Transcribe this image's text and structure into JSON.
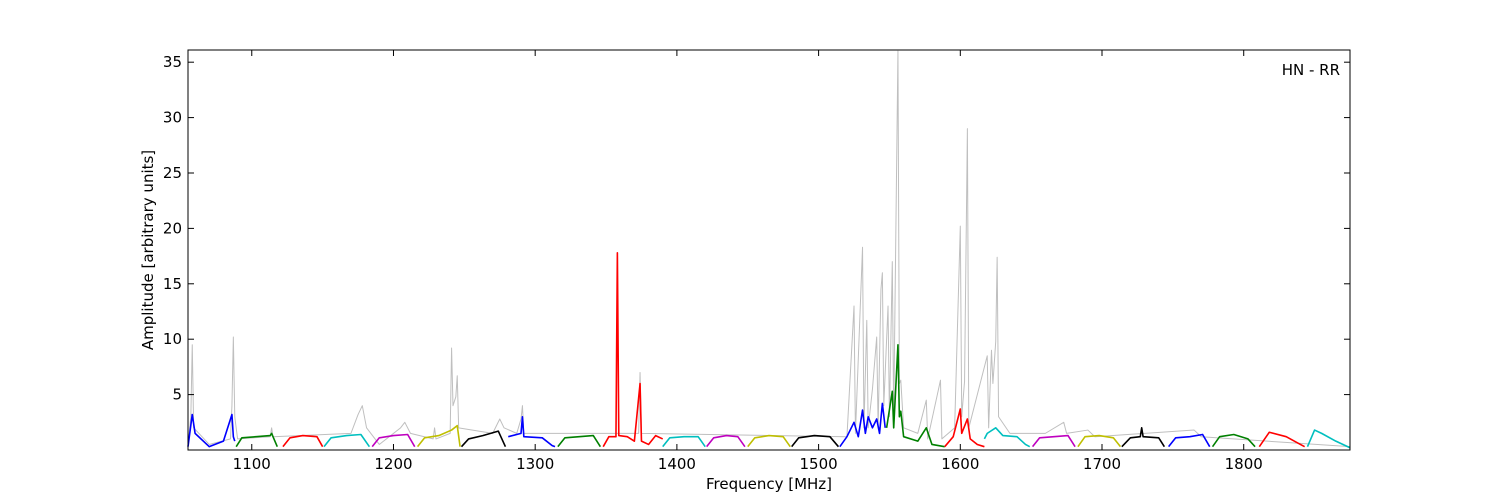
{
  "chart_data": {
    "type": "line",
    "xlabel": "Frequency [MHz]",
    "ylabel": "Amplitude [arbitrary units]",
    "annotation": "HN - RR",
    "xlim": [
      1055,
      1875
    ],
    "ylim": [
      0,
      36.1
    ],
    "xticks": [
      1100,
      1200,
      1300,
      1400,
      1500,
      1600,
      1700,
      1800
    ],
    "yticks": [
      5,
      10,
      15,
      20,
      25,
      30,
      35
    ],
    "series": [
      {
        "color": "#bfbfbf",
        "width": 1,
        "x": [
          1055,
          1057,
          1058,
          1059,
          1070,
          1085,
          1086,
          1087,
          1088,
          1090,
          1113,
          1114,
          1115,
          1170,
          1175,
          1178,
          1181,
          1190,
          1205,
          1208,
          1212,
          1228,
          1229,
          1230,
          1240,
          1241,
          1242,
          1244,
          1245,
          1246,
          1270,
          1275,
          1278,
          1287,
          1290,
          1291,
          1292,
          1373,
          1374,
          1375,
          1520,
          1525,
          1526,
          1531,
          1532,
          1534,
          1535,
          1538,
          1541,
          1542,
          1544,
          1545,
          1546,
          1549,
          1550,
          1552,
          1553,
          1556,
          1557,
          1558,
          1560,
          1570,
          1576,
          1577,
          1586,
          1587,
          1596,
          1600,
          1601,
          1603,
          1605,
          1606,
          1619,
          1620,
          1622,
          1623,
          1625,
          1626,
          1627,
          1635,
          1660,
          1673,
          1675,
          1690,
          1695,
          1765,
          1770,
          1875
        ],
        "values": [
          0.5,
          3,
          9.5,
          2,
          0.5,
          1,
          4,
          10.2,
          3,
          1,
          1.2,
          2,
          1.2,
          1.5,
          3.2,
          4,
          2,
          0.5,
          2,
          2.5,
          1.5,
          1,
          2,
          1,
          1.5,
          9.2,
          4,
          4.8,
          6.7,
          2,
          1.5,
          2.8,
          2,
          1.5,
          2.8,
          4,
          1.5,
          1.5,
          7,
          1.5,
          1.2,
          13,
          1.5,
          18.3,
          2,
          11.7,
          2,
          5.5,
          10.2,
          2,
          14.5,
          16,
          4,
          13,
          3,
          17,
          3,
          36,
          6,
          6.3,
          2,
          1.5,
          4.5,
          1,
          6.3,
          1,
          2,
          20.2,
          3,
          6.2,
          29,
          2,
          8.5,
          2,
          9,
          6,
          9.8,
          17.4,
          3,
          1.5,
          1.5,
          2.5,
          1.5,
          1.8,
          1.2,
          1.8,
          1.2,
          0.3
        ]
      },
      {
        "color": "#0000ff",
        "x": [
          1055,
          1058,
          1060,
          1070,
          1080,
          1086,
          1087,
          1088
        ],
        "values": [
          0.3,
          3.2,
          1.5,
          0.3,
          0.8,
          3.2,
          1.2,
          0.8
        ]
      },
      {
        "color": "#008000",
        "x": [
          1089,
          1093,
          1103,
          1113,
          1114,
          1118
        ],
        "values": [
          0.3,
          1.1,
          1.2,
          1.3,
          1.5,
          0.3
        ]
      },
      {
        "color": "#ff0000",
        "x": [
          1122,
          1127,
          1136,
          1146,
          1150
        ],
        "values": [
          0.3,
          1.1,
          1.3,
          1.2,
          0.3
        ]
      },
      {
        "color": "#00bfbf",
        "x": [
          1151,
          1156,
          1167,
          1177,
          1183
        ],
        "values": [
          0.3,
          1.1,
          1.3,
          1.4,
          0.3
        ]
      },
      {
        "color": "#bf00bf",
        "x": [
          1185,
          1190,
          1200,
          1210,
          1215
        ],
        "values": [
          0.3,
          1.1,
          1.3,
          1.4,
          0.3
        ]
      },
      {
        "color": "#bfbf00",
        "x": [
          1217,
          1222,
          1232,
          1241,
          1245,
          1247
        ],
        "values": [
          0.3,
          1.1,
          1.3,
          1.8,
          2.2,
          0.3
        ]
      },
      {
        "color": "#000000",
        "x": [
          1248,
          1253,
          1263,
          1274,
          1279
        ],
        "values": [
          0.3,
          1.0,
          1.3,
          1.7,
          0.3
        ]
      },
      {
        "color": "#0000ff",
        "x": [
          1281,
          1290,
          1291,
          1292,
          1305,
          1312,
          1314
        ],
        "values": [
          1.2,
          1.5,
          3,
          1.2,
          1.1,
          0.4,
          0.3
        ]
      },
      {
        "color": "#008000",
        "x": [
          1316,
          1321,
          1331,
          1341,
          1346
        ],
        "values": [
          0.3,
          1.1,
          1.2,
          1.3,
          0.3
        ]
      },
      {
        "color": "#ff0000",
        "x": [
          1348,
          1352,
          1357,
          1358,
          1359,
          1365,
          1370,
          1374,
          1375,
          1380,
          1385,
          1390
        ],
        "values": [
          0.3,
          1.2,
          1.2,
          17.8,
          1.3,
          1.2,
          0.8,
          6,
          0.8,
          0.5,
          1.3,
          1
        ]
      },
      {
        "color": "#00bfbf",
        "x": [
          1390,
          1395,
          1405,
          1415,
          1420
        ],
        "values": [
          0.3,
          1.1,
          1.2,
          1.2,
          0.3
        ]
      },
      {
        "color": "#bf00bf",
        "x": [
          1421,
          1426,
          1435,
          1443,
          1448
        ],
        "values": [
          0.3,
          1.1,
          1.3,
          1.2,
          0.3
        ]
      },
      {
        "color": "#bfbf00",
        "x": [
          1450,
          1455,
          1465,
          1475,
          1480
        ],
        "values": [
          0.3,
          1.1,
          1.3,
          1.2,
          0.3
        ]
      },
      {
        "color": "#000000",
        "x": [
          1481,
          1486,
          1497,
          1508,
          1514
        ],
        "values": [
          0.3,
          1.1,
          1.3,
          1.2,
          0.3
        ]
      },
      {
        "color": "#0000ff",
        "x": [
          1515,
          1520,
          1525,
          1528,
          1531,
          1533,
          1535,
          1538,
          1541,
          1543,
          1545,
          1547
        ],
        "values": [
          0.3,
          1.2,
          2.5,
          1.2,
          3.6,
          1.5,
          3,
          2,
          2.8,
          1.5,
          4.2,
          2
        ]
      },
      {
        "color": "#008000",
        "x": [
          1548,
          1552,
          1553,
          1556,
          1557,
          1558,
          1560,
          1570,
          1576,
          1580,
          1589
        ],
        "values": [
          2,
          5.3,
          2,
          9.5,
          3,
          3.5,
          1.2,
          0.8,
          2,
          0.5,
          0.3
        ]
      },
      {
        "color": "#ff0000",
        "x": [
          1589,
          1595,
          1600,
          1601,
          1605,
          1607,
          1612,
          1617
        ],
        "values": [
          0.3,
          1.2,
          3.7,
          1.5,
          2.8,
          1,
          0.5,
          0.3
        ]
      },
      {
        "color": "#00bfbf",
        "x": [
          1617,
          1619,
          1625,
          1630,
          1640,
          1646,
          1649
        ],
        "values": [
          1,
          1.5,
          2,
          1.3,
          1.2,
          0.5,
          0.3
        ]
      },
      {
        "color": "#bf00bf",
        "x": [
          1651,
          1656,
          1666,
          1676,
          1681
        ],
        "values": [
          0.3,
          1.1,
          1.2,
          1.3,
          0.3
        ]
      },
      {
        "color": "#bfbf00",
        "x": [
          1683,
          1688,
          1698,
          1708,
          1713
        ],
        "values": [
          0.3,
          1.2,
          1.3,
          1.1,
          0.3
        ]
      },
      {
        "color": "#000000",
        "x": [
          1714,
          1720,
          1727,
          1728,
          1729,
          1740,
          1744
        ],
        "values": [
          0.3,
          1.1,
          1.2,
          2,
          1.2,
          1.1,
          0.3
        ]
      },
      {
        "color": "#0000ff",
        "x": [
          1747,
          1752,
          1762,
          1771,
          1776
        ],
        "values": [
          0.3,
          1.1,
          1.2,
          1.4,
          0.3
        ]
      },
      {
        "color": "#008000",
        "x": [
          1778,
          1783,
          1793,
          1803,
          1808
        ],
        "values": [
          0.3,
          1.2,
          1.4,
          1.0,
          0.3
        ]
      },
      {
        "color": "#ff0000",
        "x": [
          1811,
          1818,
          1830,
          1840,
          1843
        ],
        "values": [
          0.3,
          1.6,
          1.2,
          0.5,
          0.3
        ]
      },
      {
        "color": "#00bfbf",
        "x": [
          1845,
          1850,
          1855,
          1865,
          1875
        ],
        "values": [
          0.3,
          1.8,
          1.5,
          0.8,
          0.2
        ]
      }
    ]
  }
}
